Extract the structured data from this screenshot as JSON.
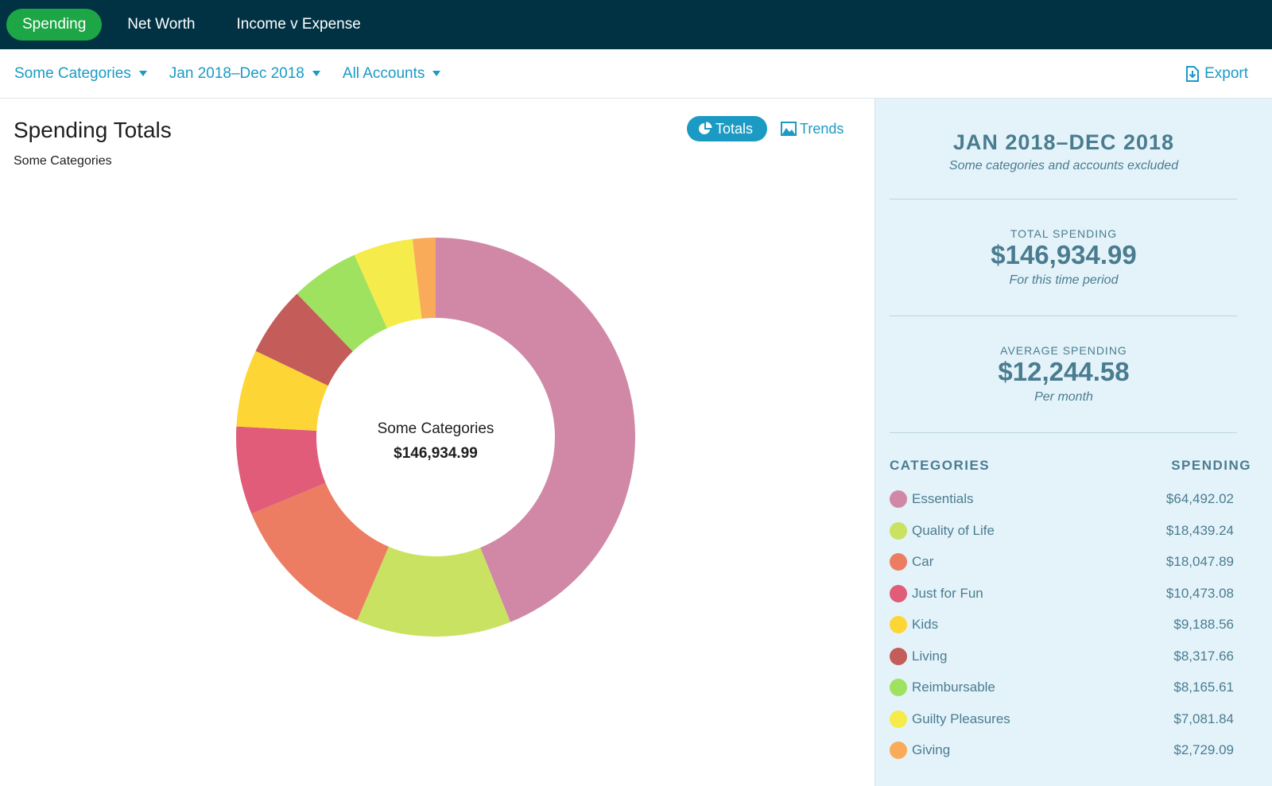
{
  "nav": {
    "tabs": [
      {
        "label": "Spending"
      },
      {
        "label": "Net Worth"
      },
      {
        "label": "Income v Expense"
      }
    ]
  },
  "filters": {
    "categories": "Some Categories",
    "date_range": "Jan 2018–Dec 2018",
    "accounts": "All Accounts",
    "export_label": "Export"
  },
  "main": {
    "title": "Spending Totals",
    "subtitle": "Some Categories",
    "toggle_totals": "Totals",
    "toggle_trends": "Trends",
    "center_label": "Some Categories",
    "center_value": "$146,934.99"
  },
  "summary": {
    "period": "JAN 2018–DEC 2018",
    "period_note": "Some categories and accounts excluded",
    "total_label": "TOTAL SPENDING",
    "total_value": "$146,934.99",
    "total_note": "For this time period",
    "avg_label": "AVERAGE SPENDING",
    "avg_value": "$12,244.58",
    "avg_note": "Per month",
    "cat_header": "CATEGORIES",
    "spend_header": "SPENDING"
  },
  "chart_data": {
    "type": "pie",
    "title": "Some Categories",
    "total": 146934.99,
    "categories": [
      "Essentials",
      "Quality of Life",
      "Car",
      "Just for Fun",
      "Kids",
      "Living",
      "Reimbursable",
      "Guilty Pleasures",
      "Giving"
    ],
    "values": [
      64492.02,
      18439.24,
      18047.89,
      10473.08,
      9188.56,
      8317.66,
      8165.61,
      7081.84,
      2729.09
    ],
    "labels": [
      "$64,492.02",
      "$18,439.24",
      "$18,047.89",
      "$10,473.08",
      "$9,188.56",
      "$8,317.66",
      "$8,165.61",
      "$7,081.84",
      "$2,729.09"
    ],
    "colors": [
      "#d088a6",
      "#c9e262",
      "#ec7d62",
      "#e05c78",
      "#fdd534",
      "#c45c5a",
      "#9fe260",
      "#f5eb4b",
      "#f9ab5a"
    ]
  }
}
